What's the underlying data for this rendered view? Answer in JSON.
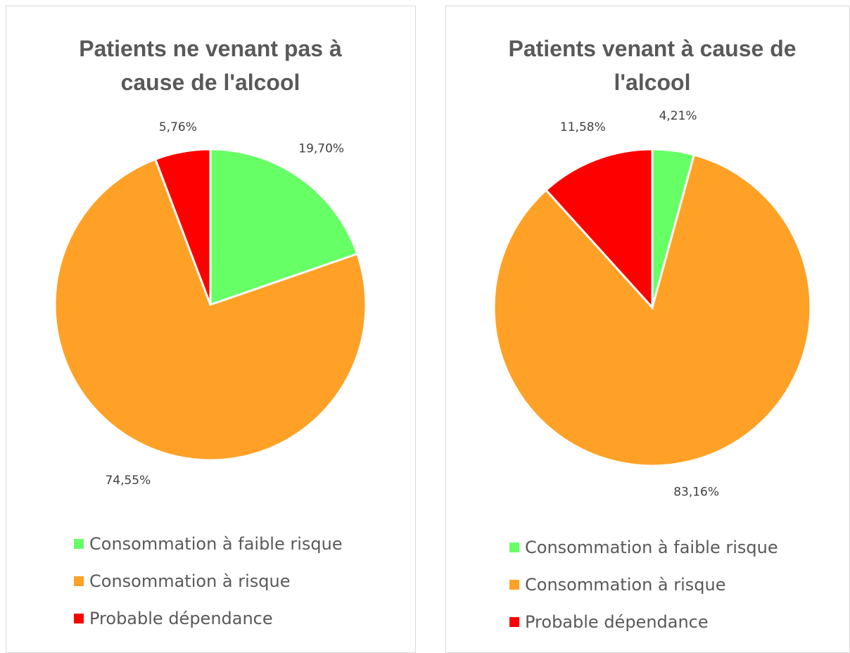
{
  "chart_data": [
    {
      "type": "pie",
      "title": "Patients ne venant pas à cause de l'alcool",
      "categories": [
        "Consommation à faible risque",
        "Consommation à risque",
        "Probable dépendance"
      ],
      "values": [
        19.7,
        74.55,
        5.76
      ],
      "value_labels": [
        "19,70%",
        "74,55%",
        "5,76%"
      ],
      "colors": [
        "#66ff66",
        "#ffa126",
        "#ff0000"
      ]
    },
    {
      "type": "pie",
      "title": "Patients venant à cause de l'alcool",
      "categories": [
        "Consommation à faible risque",
        "Consommation à risque",
        "Probable dépendance"
      ],
      "values": [
        4.21,
        83.16,
        11.58
      ],
      "value_labels": [
        "4,21%",
        "83,16%",
        "11,58%"
      ],
      "colors": [
        "#66ff66",
        "#ffa126",
        "#ff0000"
      ]
    }
  ]
}
